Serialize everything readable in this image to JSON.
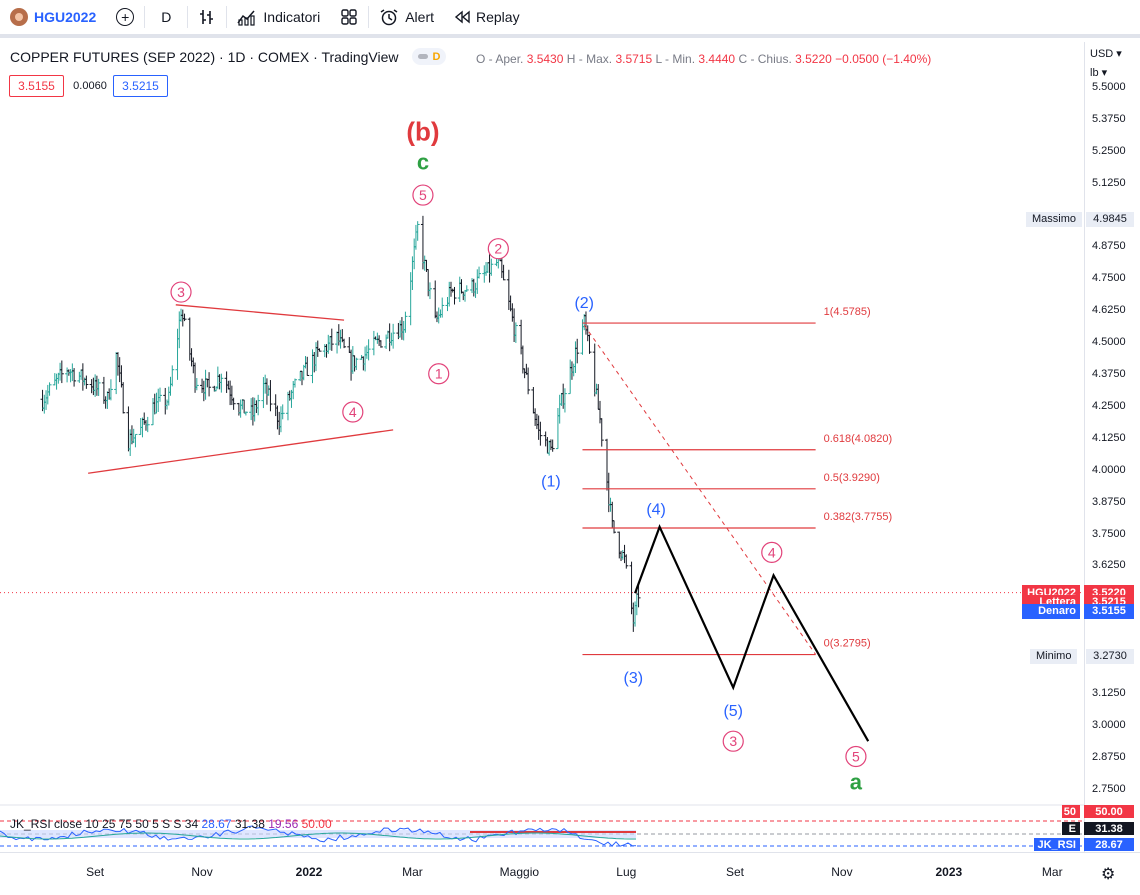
{
  "toolbar": {
    "symbol": "HGU2022",
    "add_symbol_icon": "plus-circle-icon",
    "interval": "D",
    "indicators_label": "Indicatori",
    "layouts_icon": "grid-icon",
    "alert_label": "Alert",
    "replay_label": "Replay"
  },
  "legend": {
    "title": "COPPER FUTURES (SEP 2022) · 1D · COMEX · TradingView",
    "market_badge": "D",
    "o_label": "O - Aper.",
    "o_value": "3.5430",
    "h_label": "H - Max.",
    "h_value": "3.5715",
    "l_label": "L - Min.",
    "l_value": "3.4440",
    "c_label": "C - Chius.",
    "c_value": "3.5220",
    "change": "−0.0500 (−1.40%)",
    "sell_price": "3.5155",
    "spread": "0.0060",
    "buy_price": "3.5215"
  },
  "price_axis": {
    "currency": "USD",
    "unit": "lb",
    "ticks": [
      "5.5000",
      "5.3750",
      "5.2500",
      "5.1250",
      "4.8750",
      "4.7500",
      "4.6250",
      "4.5000",
      "4.3750",
      "4.2500",
      "4.1250",
      "4.0000",
      "3.8750",
      "3.7500",
      "3.6250",
      "3.1250",
      "3.0000",
      "2.8750",
      "2.7500"
    ],
    "tags": [
      {
        "label": "Massimo",
        "value": "4.9845"
      },
      {
        "label": "HGU2022",
        "value": "3.5220"
      },
      {
        "label": "Lettera",
        "value": "3.5215"
      },
      {
        "label": "Denaro",
        "value": "3.5155"
      },
      {
        "label": "Minimo",
        "value": "3.2730"
      }
    ]
  },
  "time_axis": {
    "labels": [
      "Set",
      "Nov",
      "2022",
      "Mar",
      "Maggio",
      "Lug",
      "Set",
      "Nov",
      "2023",
      "Mar"
    ]
  },
  "rsi": {
    "legend": "JK_RSI close 10 25 75 50 5 S S 34",
    "values": [
      "28.67",
      "31.38",
      "19.56",
      "50.00"
    ],
    "tags": [
      {
        "label": "50",
        "value": "50.00"
      },
      {
        "label": "E",
        "value": "31.38"
      },
      {
        "label": "JK_RSI",
        "value": "28.67"
      }
    ]
  },
  "colors": {
    "up": "#26a69a",
    "down": "#ef5350",
    "bar": "#131722",
    "wave_red": "#e03a3e",
    "wave_pink": "#e2437a",
    "wave_green": "#2ea043",
    "wave_blue": "#2962ff",
    "fib_red": "#e03a3e",
    "projection": "#000000",
    "tag_red": "#f23645",
    "tag_blue": "#2962ff"
  },
  "chart_data": {
    "type": "ohlc",
    "title": "COPPER FUTURES (SEP 2022) · 1D · COMEX · TradingView",
    "ylim": [
      2.7,
      5.55
    ],
    "price_path": [
      [
        "2021-08-02",
        4.28
      ],
      [
        "2021-08-16",
        4.4
      ],
      [
        "2021-08-30",
        4.34
      ],
      [
        "2021-09-08",
        4.28
      ],
      [
        "2021-09-13",
        4.45
      ],
      [
        "2021-09-20",
        4.12
      ],
      [
        "2021-09-27",
        4.16
      ],
      [
        "2021-10-04",
        4.25
      ],
      [
        "2021-10-13",
        4.28
      ],
      [
        "2021-10-20",
        4.63
      ],
      [
        "2021-10-28",
        4.36
      ],
      [
        "2021-11-05",
        4.32
      ],
      [
        "2021-11-12",
        4.38
      ],
      [
        "2021-11-22",
        4.25
      ],
      [
        "2021-11-30",
        4.22
      ],
      [
        "2021-12-06",
        4.33
      ],
      [
        "2021-12-15",
        4.2
      ],
      [
        "2021-12-24",
        4.33
      ],
      [
        "2022-01-05",
        4.45
      ],
      [
        "2022-01-17",
        4.52
      ],
      [
        "2022-01-25",
        4.42
      ],
      [
        "2022-02-01",
        4.45
      ],
      [
        "2022-02-14",
        4.53
      ],
      [
        "2022-02-24",
        4.57
      ],
      [
        "2022-03-04",
        4.95
      ],
      [
        "2022-03-14",
        4.58
      ],
      [
        "2022-03-23",
        4.7
      ],
      [
        "2022-04-04",
        4.72
      ],
      [
        "2022-04-19",
        4.82
      ],
      [
        "2022-05-02",
        4.45
      ],
      [
        "2022-05-12",
        4.15
      ],
      [
        "2022-05-19",
        4.08
      ],
      [
        "2022-05-25",
        4.27
      ],
      [
        "2022-06-07",
        4.58
      ],
      [
        "2022-06-16",
        4.2
      ],
      [
        "2022-06-23",
        3.78
      ],
      [
        "2022-06-30",
        3.65
      ],
      [
        "2022-07-05",
        3.41
      ],
      [
        "2022-07-08",
        3.52
      ]
    ],
    "wave_labels": [
      {
        "text": "(b)",
        "color": "red",
        "date": "2022-03-07",
        "price": 5.33
      },
      {
        "text": "c",
        "color": "green",
        "date": "2022-03-07",
        "price": 5.21
      },
      {
        "text": "5",
        "color": "pink",
        "circled": true,
        "date": "2022-03-07",
        "price": 5.08
      },
      {
        "text": "3",
        "color": "pink",
        "circled": true,
        "date": "2021-10-20",
        "price": 4.7
      },
      {
        "text": "4",
        "color": "pink",
        "circled": true,
        "date": "2022-01-26",
        "price": 4.23
      },
      {
        "text": "1",
        "color": "pink",
        "circled": true,
        "date": "2022-03-16",
        "price": 4.38
      },
      {
        "text": "2",
        "color": "pink",
        "circled": true,
        "date": "2022-04-19",
        "price": 4.87
      },
      {
        "text": "(2)",
        "color": "blue",
        "date": "2022-06-07",
        "price": 4.66
      },
      {
        "text": "(1)",
        "color": "blue",
        "date": "2022-05-19",
        "price": 3.96
      },
      {
        "text": "(4)",
        "color": "blue",
        "date": "2022-07-18",
        "price": 3.85
      },
      {
        "text": "(3)",
        "color": "blue",
        "date": "2022-07-05",
        "price": 3.19
      },
      {
        "text": "(5)",
        "color": "blue",
        "date": "2022-08-31",
        "price": 3.06
      },
      {
        "text": "3",
        "color": "pink",
        "circled": true,
        "date": "2022-08-31",
        "price": 2.94
      },
      {
        "text": "4",
        "color": "pink",
        "circled": true,
        "date": "2022-09-22",
        "price": 3.68
      },
      {
        "text": "5",
        "color": "pink",
        "circled": true,
        "date": "2022-11-09",
        "price": 2.88
      },
      {
        "text": "a",
        "color": "green",
        "date": "2022-11-09",
        "price": 2.78
      }
    ],
    "triangle": [
      {
        "from": [
          "2021-10-17",
          4.65
        ],
        "to": [
          "2022-01-21",
          4.59
        ]
      },
      {
        "from": [
          "2021-08-28",
          3.99
        ],
        "to": [
          "2022-02-18",
          4.16
        ]
      }
    ],
    "fib_levels": [
      {
        "label": "1(4.5785)",
        "price": 4.5785
      },
      {
        "label": "0.618(4.0820)",
        "price": 4.082
      },
      {
        "label": "0.5(3.9290)",
        "price": 3.929
      },
      {
        "label": "0.382(3.7755)",
        "price": 3.7755
      },
      {
        "label": "0(3.2795)",
        "price": 3.2795
      }
    ],
    "fib_range": [
      "2022-06-06",
      "2022-10-17"
    ],
    "fib_diagonal": {
      "from": [
        "2022-06-07",
        4.57
      ],
      "to": [
        "2022-10-17",
        3.28
      ]
    },
    "projection": [
      [
        "2022-07-06",
        3.52
      ],
      [
        "2022-07-20",
        3.78
      ],
      [
        "2022-08-31",
        3.15
      ],
      [
        "2022-09-23",
        3.59
      ],
      [
        "2022-11-16",
        2.94
      ]
    ],
    "current_price": 3.522
  }
}
